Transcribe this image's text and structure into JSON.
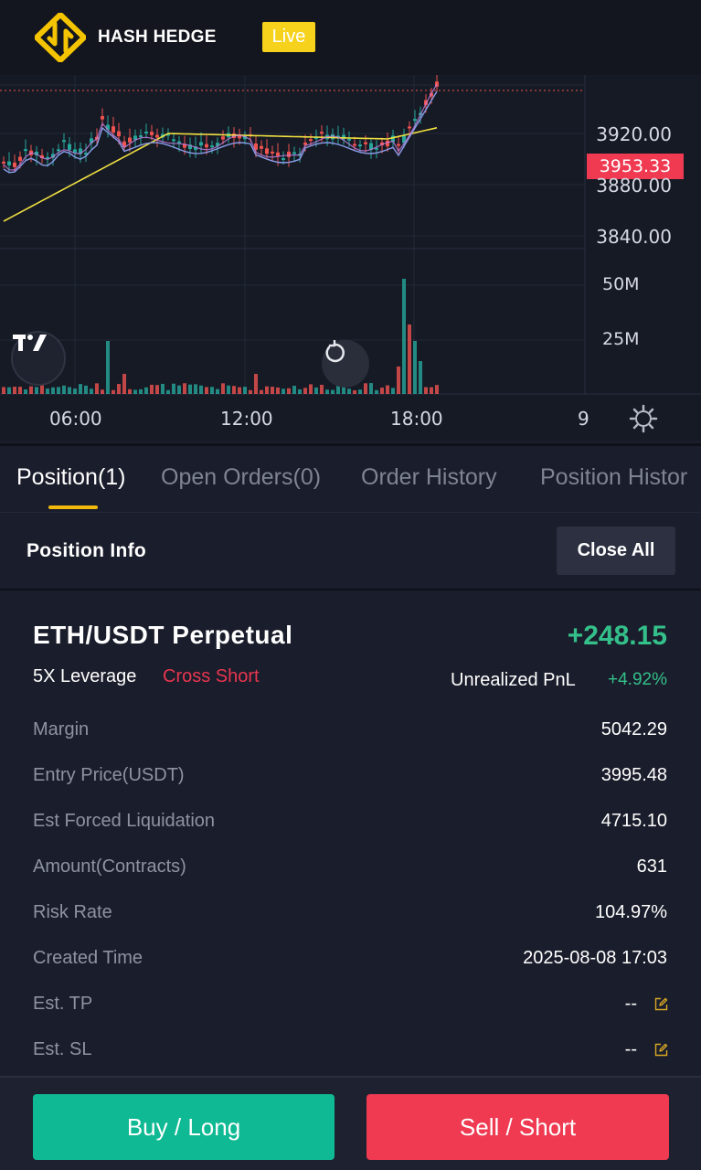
{
  "header": {
    "brand": "HASH HEDGE",
    "live_badge": "Live",
    "logo_icon": "hash-hedge-logo-icon"
  },
  "chart": {
    "price_axis": [
      "3920.00",
      "3880.00",
      "3840.00"
    ],
    "current_price": "3953.33",
    "volume_axis": [
      "50M",
      "25M"
    ],
    "time_axis": [
      "06:00",
      "12:00",
      "18:00",
      "9"
    ],
    "colors": {
      "up": "#26a69a",
      "down": "#ef5350",
      "ma_yellow": "#f0e040",
      "ma_blue": "#8a9ce8",
      "ma_purple": "#c080e0"
    },
    "icons": {
      "tradingview": "tradingview-logo-icon",
      "reset": "reset-chart-icon",
      "settings": "gear-icon"
    }
  },
  "tabs": [
    {
      "label": "Position(1)",
      "active": true
    },
    {
      "label": "Open Orders(0)",
      "active": false
    },
    {
      "label": "Order History",
      "active": false
    },
    {
      "label": "Position Histor",
      "active": false
    }
  ],
  "position_info": {
    "title": "Position Info",
    "close_all": "Close All"
  },
  "position": {
    "symbol": "ETH/USDT Perpetual",
    "pnl": "+248.15",
    "leverage": "5X  Leverage",
    "side": "Cross Short",
    "upnl_label": "Unrealized PnL",
    "upnl_pct": "+4.92%",
    "rows": [
      {
        "label": "Margin",
        "value": "5042.29"
      },
      {
        "label": "Entry Price(USDT)",
        "value": "3995.48"
      },
      {
        "label": "Est Forced Liquidation",
        "value": "4715.10"
      },
      {
        "label": "Amount(Contracts)",
        "value": "631"
      },
      {
        "label": "Risk Rate",
        "value": "104.97%"
      },
      {
        "label": "Created Time",
        "value": "2025-08-08 17:03"
      },
      {
        "label": "Est. TP",
        "value": "--"
      },
      {
        "label": "Est. SL",
        "value": "--"
      }
    ]
  },
  "footer": {
    "buy": "Buy / Long",
    "sell": "Sell / Short",
    "colors": {
      "buy": "#0fb993",
      "sell": "#ef3a52"
    }
  }
}
